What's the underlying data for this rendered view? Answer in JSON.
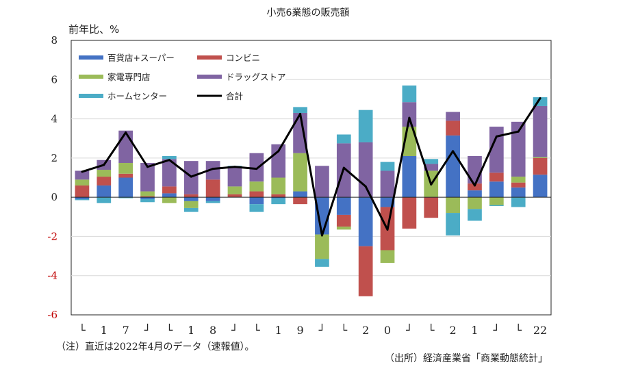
{
  "chart_data": {
    "type": "bar",
    "stacked": true,
    "title": "小売6業態の販売額",
    "ylabel": "前年比、%",
    "ylim": [
      -6,
      8
    ],
    "yticks": [
      -6,
      -4,
      -2,
      0,
      2,
      4,
      6,
      8
    ],
    "colors": {
      "department_super": "#4472c4",
      "convenience": "#c0504d",
      "appliance": "#9bbb59",
      "drugstore": "#8064a2",
      "home_center": "#4bacc6",
      "total": "#000000",
      "negative_tick": "#c00000",
      "grid": "#d9d9d9"
    },
    "x_axis_labels": [
      "└",
      "1",
      "7",
      "┘",
      "└",
      "1",
      "8",
      "┘",
      "└",
      "1",
      "9",
      "┘",
      "└",
      "2",
      "0",
      "┘",
      "└",
      "2",
      "1",
      "┘",
      "└",
      "22"
    ],
    "series": [
      {
        "key": "department_super",
        "name": "百貨店+スーパー",
        "values": [
          -0.1,
          0.6,
          1.0,
          -0.1,
          0.2,
          -0.2,
          -0.2,
          0.0,
          -0.35,
          -0.05,
          0.3,
          -1.9,
          -0.9,
          -2.5,
          -0.5,
          2.1,
          0.0,
          3.15,
          0.35,
          0.8,
          0.5,
          1.15
        ]
      },
      {
        "key": "convenience",
        "name": "コンビニ",
        "values": [
          0.6,
          0.45,
          0.2,
          0.05,
          0.35,
          0.15,
          0.9,
          0.15,
          0.3,
          0.15,
          -0.35,
          0.0,
          -0.6,
          -2.55,
          -2.2,
          -1.6,
          -1.05,
          0.75,
          0.35,
          0.45,
          0.25,
          0.85
        ]
      },
      {
        "key": "appliance",
        "name": "家電専門店",
        "values": [
          0.3,
          0.35,
          0.55,
          0.25,
          -0.3,
          -0.35,
          0.0,
          0.4,
          0.5,
          0.85,
          1.95,
          -1.25,
          -0.15,
          0.0,
          -0.65,
          1.5,
          1.35,
          -0.8,
          -0.6,
          -0.4,
          0.3,
          0.05
        ]
      },
      {
        "key": "drugstore",
        "name": "ドラッグストア",
        "values": [
          0.45,
          0.5,
          1.65,
          1.45,
          1.4,
          1.7,
          0.95,
          1.0,
          1.45,
          1.7,
          2.05,
          1.6,
          2.75,
          2.8,
          1.35,
          1.25,
          0.35,
          0.45,
          1.4,
          2.35,
          2.8,
          2.6
        ]
      },
      {
        "key": "home_center",
        "name": "ホームセンター",
        "values": [
          -0.05,
          -0.3,
          -0.05,
          -0.15,
          0.15,
          -0.2,
          -0.1,
          0.05,
          -0.4,
          -0.3,
          0.3,
          -0.4,
          0.45,
          1.65,
          0.45,
          0.85,
          0.25,
          -1.15,
          -0.6,
          -0.05,
          -0.5,
          0.45
        ]
      }
    ],
    "total": {
      "name": "合計",
      "values": [
        1.3,
        1.65,
        3.3,
        1.55,
        1.9,
        1.05,
        1.45,
        1.55,
        1.45,
        2.35,
        4.25,
        -1.95,
        1.5,
        0.55,
        -1.65,
        4.05,
        0.65,
        2.35,
        0.6,
        3.1,
        3.35,
        5.05
      ]
    }
  },
  "notes": {
    "left": "（注）直近は2022年4月のデータ（速報値）。",
    "right": "（出所）経済産業省「商業動態統計」"
  }
}
